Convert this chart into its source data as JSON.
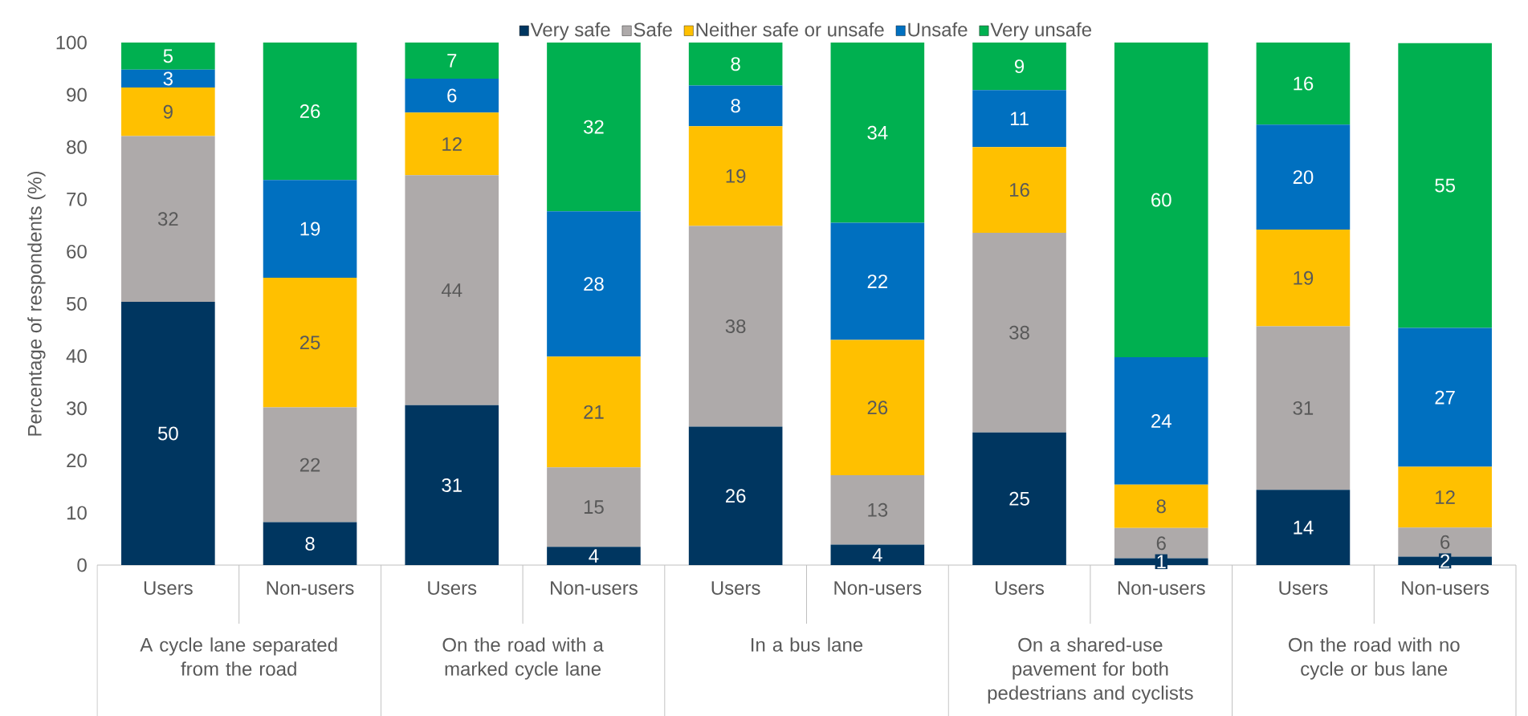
{
  "chart_data": {
    "type": "bar",
    "stacked": true,
    "ylabel": "Percentage of respondents (%)",
    "categories": [
      "Users",
      "Non-users",
      "Users",
      "Non-users",
      "Users",
      "Non-users",
      "Users",
      "Non-users",
      "Users",
      "Non-users"
    ],
    "annotations": [
      "A cycle lane separated from the road",
      "On the road with a marked cycle lane",
      "In a bus lane",
      "On a shared-use pavement for both pedestrians and cyclists",
      "On the road with no cycle or bus lane"
    ],
    "series": [
      {
        "name": "Very safe",
        "color": "#003660",
        "values": [
          50.4,
          8.2,
          30.6,
          3.5,
          26.5,
          3.9,
          25.4,
          1.3,
          14.4,
          1.6
        ],
        "value_labels": [
          "50",
          "8",
          "31",
          "4",
          "26",
          "4",
          "25",
          "1",
          "14",
          "2"
        ]
      },
      {
        "name": "Safe",
        "color": "#AEAAAA",
        "values": [
          31.7,
          22.0,
          44.0,
          15.2,
          38.4,
          13.3,
          38.2,
          5.8,
          31.3,
          5.6
        ],
        "value_labels": [
          "32",
          "22",
          "44",
          "15",
          "38",
          "13",
          "38",
          "6",
          "31",
          "6"
        ]
      },
      {
        "name": "Neither safe or unsafe",
        "color": "#FFC000",
        "values": [
          9.3,
          24.8,
          12.0,
          21.2,
          19.1,
          25.9,
          16.4,
          8.3,
          18.5,
          11.6
        ],
        "value_labels": [
          "9",
          "25",
          "12",
          "21",
          "19",
          "26",
          "16",
          "8",
          "19",
          "12"
        ]
      },
      {
        "name": "Unsafe",
        "color": "#0070C0",
        "values": [
          3.4,
          18.7,
          6.5,
          27.8,
          7.8,
          22.4,
          10.9,
          24.4,
          20.1,
          26.6
        ],
        "value_labels": [
          "3",
          "19",
          "6",
          "28",
          "8",
          "22",
          "11",
          "24",
          "20",
          "27"
        ]
      },
      {
        "name": "Very unsafe",
        "color": "#00B050",
        "values": [
          5.2,
          26.3,
          6.9,
          32.3,
          8.2,
          34.5,
          9.1,
          60.2,
          15.7,
          54.5
        ],
        "value_labels": [
          "5",
          "26",
          "7",
          "32",
          "8",
          "34",
          "9",
          "60",
          "16",
          "55"
        ]
      }
    ],
    "ylim": [
      0,
      100
    ],
    "yticks": [
      0,
      10,
      20,
      30,
      40,
      50,
      60,
      70,
      80,
      90,
      100
    ],
    "grid": false,
    "legend": "top"
  }
}
